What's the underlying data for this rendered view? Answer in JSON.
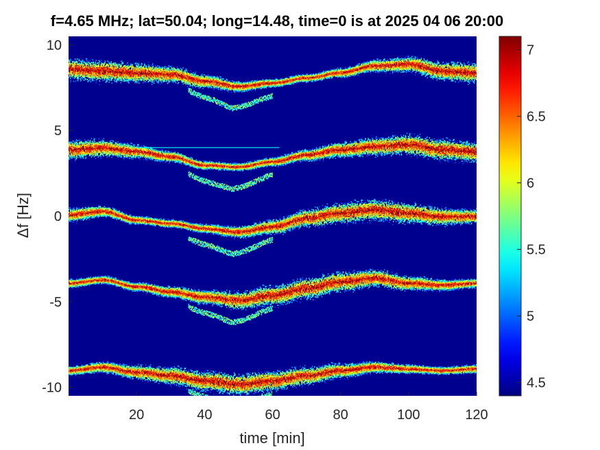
{
  "chart_data": {
    "type": "heatmap",
    "title": "f=4.65 MHz;  lat=50.04; long=14.48, time=0 is at 2025 04 06 20:00",
    "xlabel": "time [min]",
    "ylabel": "Δf [Hz]",
    "xlim": [
      0,
      120
    ],
    "ylim": [
      -10.5,
      10.5
    ],
    "x_ticks": [
      20,
      40,
      60,
      80,
      100,
      120
    ],
    "x_tick_labels": [
      "20",
      "40",
      "60",
      "80",
      "100",
      "120"
    ],
    "y_ticks": [
      10,
      5,
      0,
      -5,
      -10
    ],
    "y_tick_labels": [
      "10",
      "5",
      "0",
      "-5",
      "-10"
    ],
    "colorbar": {
      "colormap": "jet",
      "range": [
        4.4,
        7.1
      ],
      "ticks": [
        4.5,
        5,
        5.5,
        6,
        6.5,
        7
      ],
      "tick_labels": [
        "4.5",
        "5",
        "5.5",
        "6",
        "6.5",
        "7"
      ]
    },
    "background_color": "#00008f",
    "series": [
      {
        "offset_hz": 9,
        "ridge_time_min": [
          0,
          10,
          20,
          30,
          40,
          50,
          60,
          70,
          80,
          90,
          100,
          110,
          120
        ],
        "ridge_df_hz": [
          8.6,
          8.5,
          8.4,
          8.3,
          7.9,
          7.6,
          7.8,
          8.1,
          8.4,
          8.8,
          8.9,
          8.5,
          8.4
        ]
      },
      {
        "offset_hz": 4,
        "ridge_time_min": [
          0,
          10,
          20,
          30,
          40,
          50,
          60,
          70,
          80,
          90,
          100,
          110,
          120
        ],
        "ridge_df_hz": [
          3.9,
          4.0,
          3.8,
          3.5,
          3.0,
          2.9,
          3.2,
          3.6,
          3.9,
          4.1,
          4.2,
          3.9,
          3.8
        ]
      },
      {
        "offset_hz": 0,
        "ridge_time_min": [
          0,
          10,
          20,
          30,
          40,
          50,
          60,
          70,
          80,
          90,
          100,
          110,
          120
        ],
        "ridge_df_hz": [
          0.1,
          0.3,
          -0.2,
          -0.4,
          -0.7,
          -0.9,
          -0.6,
          -0.1,
          0.2,
          0.4,
          0.2,
          0.0,
          0.0
        ]
      },
      {
        "offset_hz": -4,
        "ridge_time_min": [
          0,
          10,
          20,
          30,
          40,
          50,
          60,
          70,
          80,
          90,
          100,
          110,
          120
        ],
        "ridge_df_hz": [
          -3.9,
          -3.7,
          -4.1,
          -4.4,
          -4.7,
          -4.9,
          -4.6,
          -4.2,
          -3.8,
          -3.6,
          -3.9,
          -4.0,
          -3.9
        ]
      },
      {
        "offset_hz": -9,
        "ridge_time_min": [
          0,
          10,
          20,
          30,
          40,
          50,
          60,
          70,
          80,
          90,
          100,
          110,
          120
        ],
        "ridge_df_hz": [
          -9.0,
          -8.8,
          -9.1,
          -9.3,
          -9.6,
          -9.8,
          -9.6,
          -9.3,
          -9.0,
          -8.8,
          -8.9,
          -9.0,
          -8.9
        ]
      }
    ],
    "constant_line": {
      "df_hz": 4.0,
      "time_range_min": [
        20,
        62
      ]
    }
  }
}
